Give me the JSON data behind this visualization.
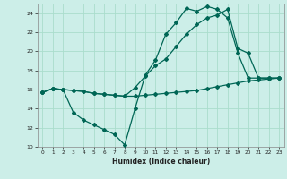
{
  "xlabel": "Humidex (Indice chaleur)",
  "bg_color": "#cceee8",
  "grid_color": "#aaddcc",
  "line_color": "#006655",
  "line1": {
    "x": [
      0,
      1,
      2,
      3,
      4,
      5,
      6,
      7,
      8,
      9,
      10,
      11,
      12,
      13,
      14,
      15,
      16,
      17,
      18,
      19,
      20,
      21,
      22,
      23
    ],
    "y": [
      15.7,
      16.1,
      16.0,
      15.9,
      15.8,
      15.6,
      15.5,
      15.4,
      15.3,
      15.3,
      15.4,
      15.5,
      15.6,
      15.7,
      15.8,
      15.9,
      16.1,
      16.3,
      16.5,
      16.7,
      16.9,
      17.0,
      17.1,
      17.2
    ]
  },
  "line2": {
    "x": [
      0,
      1,
      2,
      3,
      4,
      5,
      6,
      7,
      8,
      9,
      10,
      11,
      12,
      13,
      14,
      15,
      16,
      17,
      18,
      19,
      20,
      21,
      22,
      23
    ],
    "y": [
      15.7,
      16.1,
      16.0,
      13.6,
      12.8,
      12.3,
      11.8,
      11.3,
      10.2,
      14.0,
      17.5,
      19.1,
      21.8,
      23.0,
      24.5,
      24.2,
      24.7,
      24.4,
      23.5,
      19.8,
      17.2,
      17.2,
      17.2,
      17.2
    ]
  },
  "line3": {
    "x": [
      0,
      1,
      2,
      3,
      4,
      5,
      6,
      7,
      8,
      9,
      10,
      11,
      12,
      13,
      14,
      15,
      16,
      17,
      18,
      19,
      20,
      21,
      22,
      23
    ],
    "y": [
      15.7,
      16.1,
      16.0,
      15.9,
      15.8,
      15.6,
      15.5,
      15.4,
      15.3,
      16.2,
      17.4,
      18.5,
      19.2,
      20.5,
      21.8,
      22.8,
      23.5,
      23.8,
      24.4,
      20.3,
      19.8,
      17.2,
      17.2,
      17.2
    ]
  },
  "ylim": [
    10,
    25
  ],
  "xlim": [
    -0.5,
    23.5
  ],
  "yticks": [
    10,
    12,
    14,
    16,
    18,
    20,
    22,
    24
  ],
  "xticks": [
    0,
    1,
    2,
    3,
    4,
    5,
    6,
    7,
    8,
    9,
    10,
    11,
    12,
    13,
    14,
    15,
    16,
    17,
    18,
    19,
    20,
    21,
    22,
    23
  ]
}
